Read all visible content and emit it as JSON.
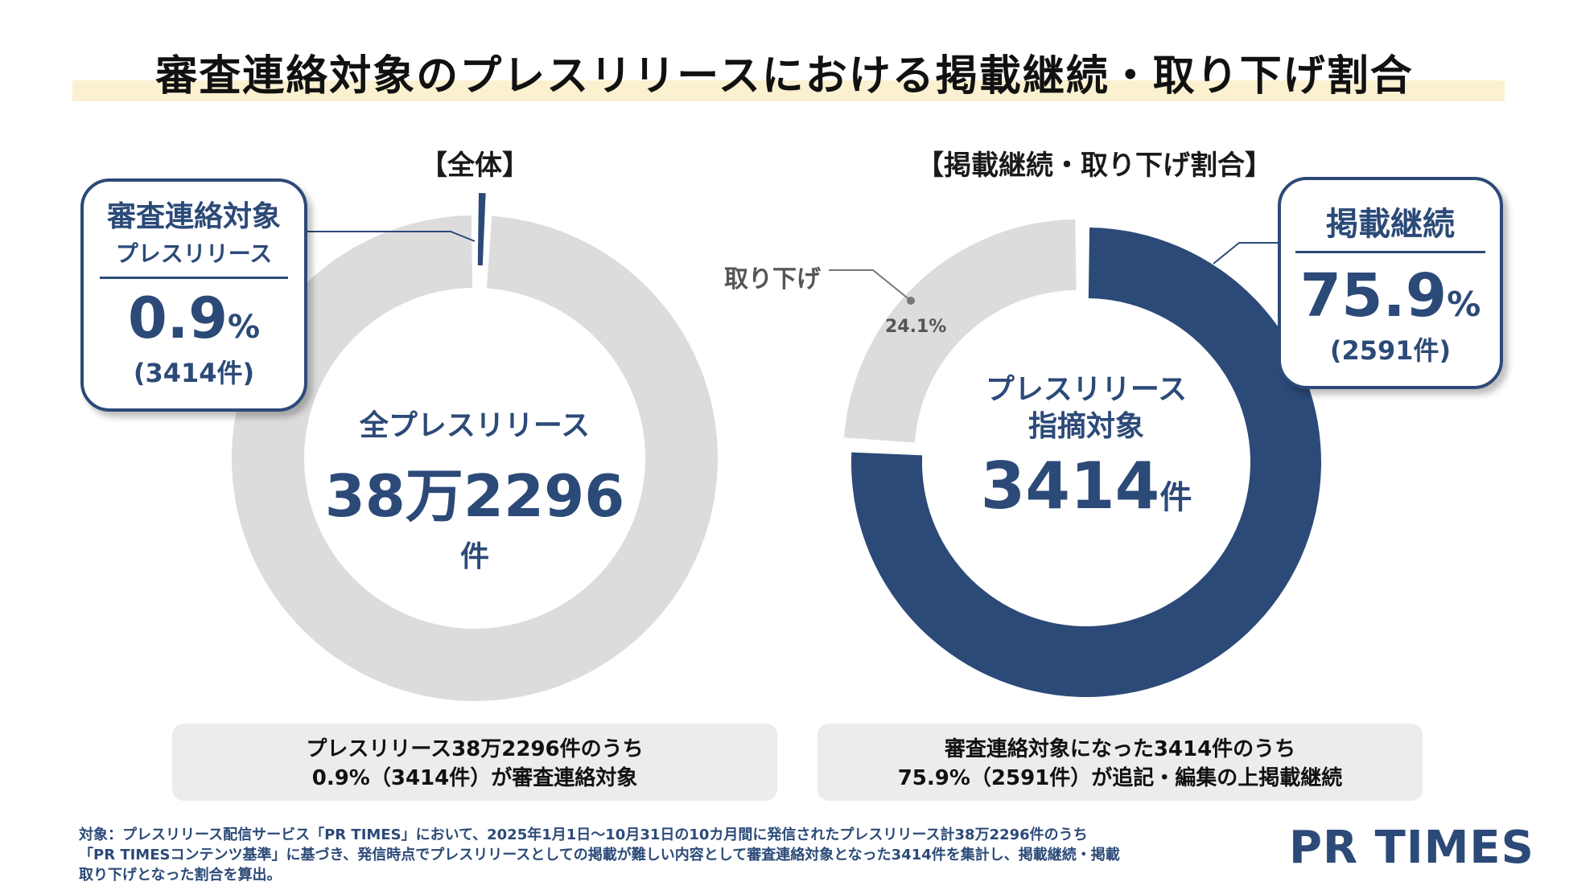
{
  "page": {
    "title": "審査連絡対象のプレスリリースにおける掲載継続・取り下げ割合",
    "footnote_lines": [
      "対象：プレスリリース配信サービス「PR TIMES」において、2025年1月1日〜10月31日の10カ月間に発信されたプレスリリース計38万2296件のうち",
      "「PR TIMESコンテンツ基準」に基づき、発信時点でプレスリリースとしての掲載が難しい内容として審査連絡対象となった3414件を集計し、掲載継続・掲載",
      "取り下げとなった割合を算出。"
    ],
    "logo": "PR TIMES"
  },
  "colors": {
    "navy": "#2c4a78",
    "gray": "#dcdcdc",
    "band": "#fbf0cf",
    "panel": "#ececec"
  },
  "chart_data": [
    {
      "type": "pie",
      "title": "【全体】",
      "center_label": "全プレスリリース",
      "center_value": "38万2296",
      "center_unit": "件",
      "slices": [
        {
          "label": "審査連絡対象プレスリリース",
          "value": 0.9
        },
        {
          "label": "",
          "value": 99.1
        }
      ],
      "callout": {
        "line1": "審査連絡対象",
        "line2": "プレスリリース",
        "value": "0.9",
        "unit": "%",
        "count": "(3414件)"
      },
      "summary": [
        "プレスリリース38万2296件のうち",
        "0.9%（3414件）が審査連絡対象"
      ]
    },
    {
      "type": "pie",
      "title": "【掲載継続・取り下げ割合】",
      "center_label": "プレスリリース",
      "center_label2": "指摘対象",
      "center_value": "3414",
      "center_unit": "件",
      "slices": [
        {
          "label": "掲載継続",
          "value": 75.9
        },
        {
          "label": "取り下げ",
          "value": 24.1
        }
      ],
      "withdrawn_label": "取り下げ",
      "withdrawn_value": "24.1%",
      "callout": {
        "line1": "掲載継続",
        "value": "75.9",
        "unit": "%",
        "count": "(2591件)"
      },
      "summary": [
        "審査連絡対象になった3414件のうち",
        "75.9%（2591件）が追記・編集の上掲載継続"
      ]
    }
  ]
}
